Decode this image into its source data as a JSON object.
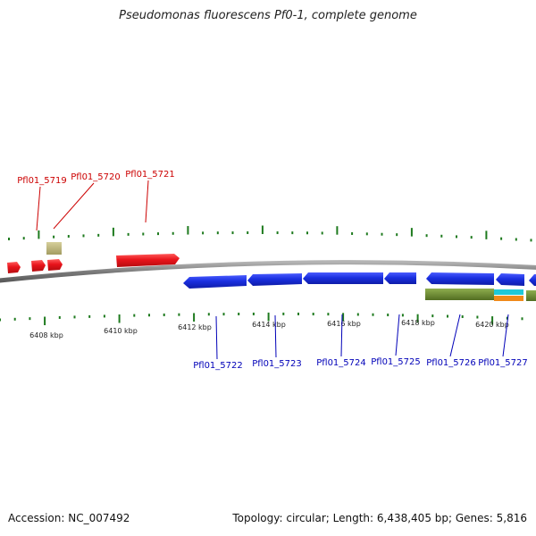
{
  "title": "Pseudomonas fluorescens Pf0-1, complete genome",
  "footer": {
    "accession": "Accession: NC_007492",
    "summary": "Topology: circular; Length: 6,438,405 bp; Genes: 5,816"
  },
  "colors": {
    "forward_gene": "#e8141b",
    "reverse_gene": "#1a2fe0",
    "forward_label": "#cc0000",
    "reverse_label": "#0000b8",
    "tick": "#1e7a1e",
    "backbone": "#8a8a8a",
    "feature_olive": "#6b8b2e",
    "feature_khaki": "#bdb57a",
    "feature_cyan": "#1fc8d8",
    "feature_orange": "#f08a1a"
  },
  "scale_labels": [
    "6408 kbp",
    "6410 kbp",
    "6412 kbp",
    "6414 kbp",
    "6416 kbp",
    "6418 kbp",
    "6420 kbp"
  ],
  "forward_genes": [
    "Pfl01_5719",
    "Pfl01_5720",
    "Pfl01_5721"
  ],
  "reverse_genes": [
    "Pfl01_5722",
    "Pfl01_5723",
    "Pfl01_5724",
    "Pfl01_5725",
    "Pfl01_5726",
    "Pfl01_5727"
  ]
}
